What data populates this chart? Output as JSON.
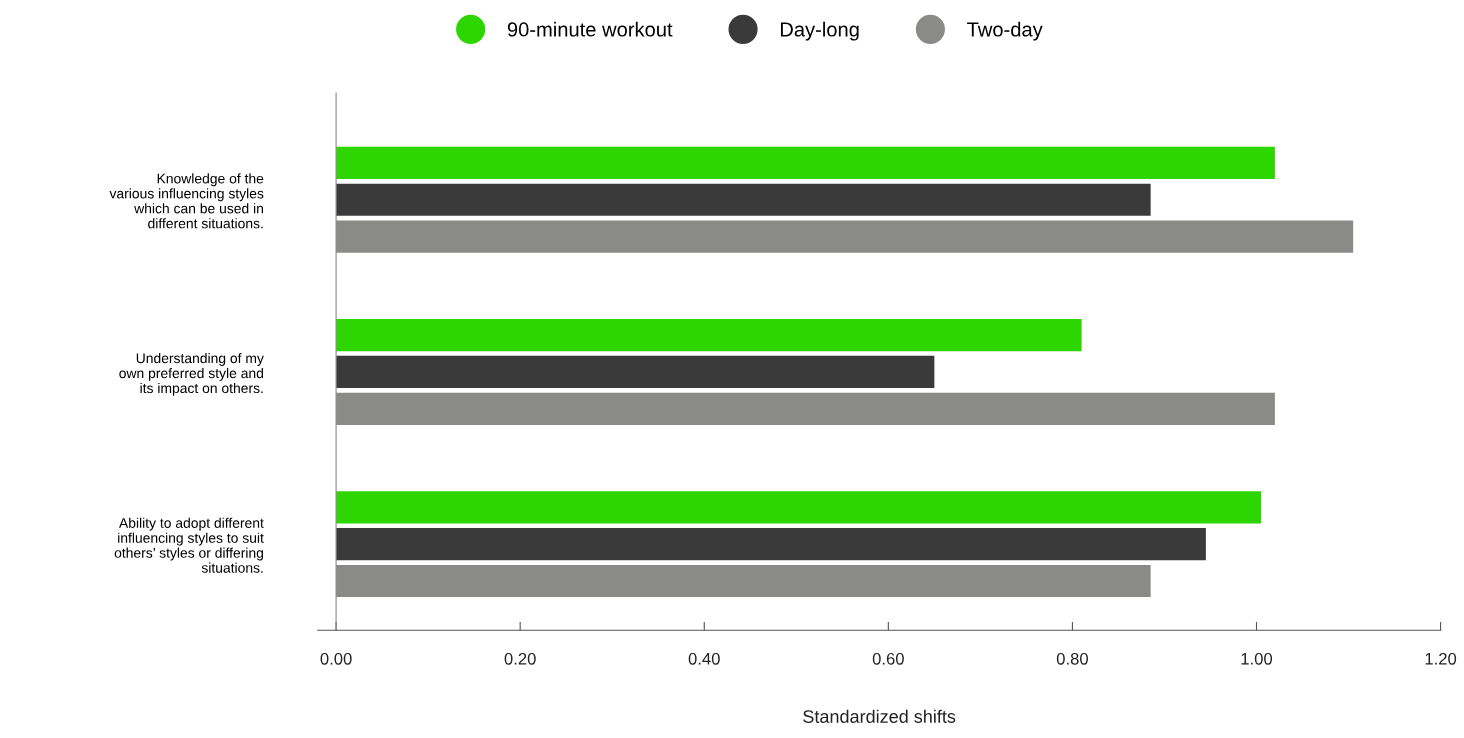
{
  "chart_data": {
    "type": "bar",
    "orientation": "horizontal",
    "xlabel": "Standardized shifts",
    "categories": [
      "Knowledge of the\nvarious influencing styles\nwhich can be used in\ndifferent situations.",
      "Understanding of my\nown preferred style and\nits impact on others.",
      "Ability to adopt different\ninfluencing styles to suit\nothers’ styles or differing\nsituations."
    ],
    "series": [
      {
        "name": "90-minute workout",
        "color": "#2ed600",
        "values": [
          1.02,
          0.81,
          1.005
        ]
      },
      {
        "name": "Day-long",
        "color": "#3a3a3a",
        "values": [
          0.885,
          0.65,
          0.945
        ]
      },
      {
        "name": "Two-day",
        "color": "#8a8a88",
        "values": [
          1.105,
          1.02,
          0.885
        ]
      }
    ],
    "xlim": [
      -0.02,
      1.2
    ],
    "xticks": [
      {
        "value": 0,
        "label": "0.00"
      },
      {
        "value": 0.2,
        "label": "0.20"
      },
      {
        "value": 0.4,
        "label": "0.40"
      },
      {
        "value": 0.6,
        "label": "0.60"
      },
      {
        "value": 0.8,
        "label": "0.80"
      },
      {
        "value": 1.0,
        "label": "1.00"
      },
      {
        "value": 1.2,
        "label": "1.20"
      }
    ],
    "legend": "top",
    "marker": "circle"
  }
}
